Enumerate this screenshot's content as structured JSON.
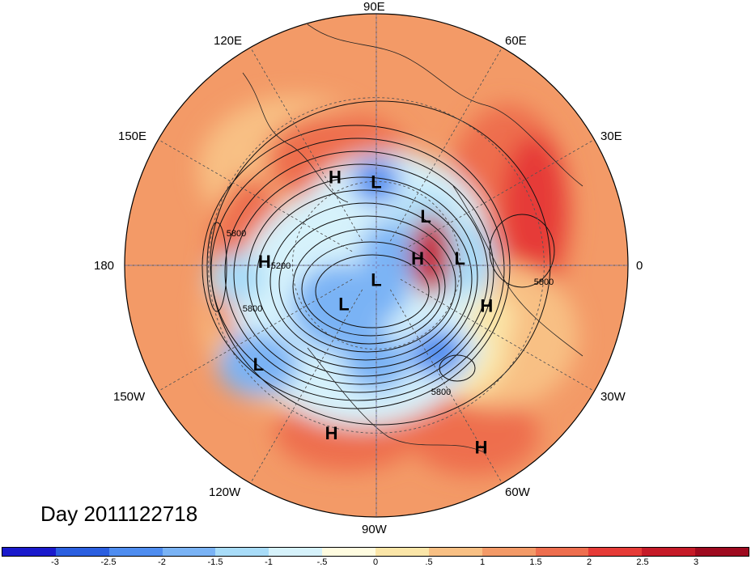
{
  "map": {
    "projection": "north-polar-stereographic",
    "longitude_labels": [
      "90E",
      "60E",
      "30E",
      "0",
      "30W",
      "60W",
      "90W",
      "120W",
      "150W",
      "180",
      "150E",
      "120E"
    ],
    "contour_labels": [
      "5800",
      "5200",
      "5800",
      "5800",
      "5800"
    ],
    "pressure_centers": [
      {
        "type": "L",
        "lon": 90,
        "lat": 60
      },
      {
        "type": "L",
        "lon": 45,
        "lat": 65
      },
      {
        "type": "H",
        "lon": 115,
        "lat": 55
      },
      {
        "type": "L",
        "lon": 5,
        "lat": 60
      },
      {
        "type": "H",
        "lon": 10,
        "lat": 75
      },
      {
        "type": "L",
        "lon": -90,
        "lat": 85
      },
      {
        "type": "L",
        "lon": -130,
        "lat": 72
      },
      {
        "type": "H",
        "lon": 178,
        "lat": 50
      },
      {
        "type": "L",
        "lon": -140,
        "lat": 35
      },
      {
        "type": "H",
        "lon": -20,
        "lat": 48
      },
      {
        "type": "H",
        "lon": -105,
        "lat": 28
      },
      {
        "type": "H",
        "lon": -60,
        "lat": 15
      }
    ]
  },
  "title": "Day 2011122718",
  "colorbar": {
    "tick_labels": [
      "-3",
      "-2.5",
      "-2",
      "-1.5",
      "-1",
      "-.5",
      "0",
      ".5",
      "1",
      "1.5",
      "2",
      "2.5",
      "3"
    ],
    "colors": [
      "#1a1acc",
      "#2b5fe0",
      "#4f8df0",
      "#7ab3f5",
      "#a8dcf8",
      "#d6f2fb",
      "#fffce0",
      "#fbe6a8",
      "#f8c084",
      "#f39a67",
      "#ee6e4e",
      "#e63b37",
      "#c61b28",
      "#9e0a1f"
    ]
  }
}
